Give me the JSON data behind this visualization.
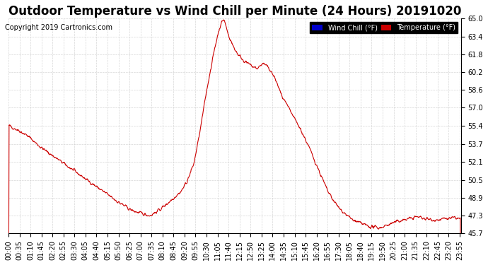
{
  "title": "Outdoor Temperature vs Wind Chill per Minute (24 Hours) 20191020",
  "copyright": "Copyright 2019 Cartronics.com",
  "legend_wind_chill": "Wind Chill (°F)",
  "legend_temperature": "Temperature (°F)",
  "line_color": "#cc0000",
  "background_color": "#ffffff",
  "plot_bg_color": "#ffffff",
  "grid_color": "#cccccc",
  "ylim": [
    45.7,
    65.0
  ],
  "yticks": [
    45.7,
    47.3,
    48.9,
    50.5,
    52.1,
    53.7,
    55.4,
    57.0,
    58.6,
    60.2,
    61.8,
    63.4,
    65.0
  ],
  "title_fontsize": 12,
  "tick_fontsize": 7,
  "legend_bg_wind": "#0000cc",
  "legend_bg_temp": "#cc0000",
  "legend_text_color": "#ffffff"
}
